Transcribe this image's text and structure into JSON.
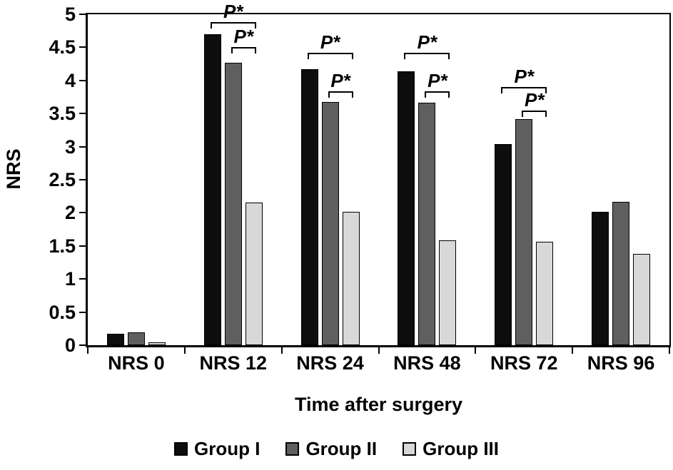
{
  "chart_data": {
    "type": "bar",
    "title": "",
    "xlabel": "Time after surgery",
    "ylabel": "NRS",
    "ylim": [
      0,
      5
    ],
    "ytick_step": 0.5,
    "ytick_labels": [
      "5",
      "4.5",
      "4",
      "3.5",
      "3",
      "2.5",
      "2",
      "1.5",
      "1",
      "0.5",
      "0"
    ],
    "grid": false,
    "legend_position": "bottom",
    "categories": [
      "NRS 0",
      "NRS 12",
      "NRS 24",
      "NRS 48",
      "NRS 72",
      "NRS 96"
    ],
    "series": [
      {
        "name": "Group I",
        "color": "#0d0d0d",
        "values": [
          0.17,
          4.7,
          4.17,
          4.14,
          3.04,
          2.01
        ]
      },
      {
        "name": "Group II",
        "color": "#5f5f5f",
        "values": [
          0.19,
          4.27,
          3.68,
          3.66,
          3.42,
          2.17
        ]
      },
      {
        "name": "Group III",
        "color": "#d8d8d8",
        "values": [
          0.04,
          2.16,
          2.02,
          1.58,
          1.56,
          1.38
        ]
      }
    ],
    "annotations": [
      {
        "label": "P*",
        "category": 1,
        "from_series": 0,
        "to_series": 2,
        "y": 4.88
      },
      {
        "label": "P*",
        "category": 1,
        "from_series": 1,
        "to_series": 2,
        "y": 4.5
      },
      {
        "label": "P*",
        "category": 2,
        "from_series": 0,
        "to_series": 2,
        "y": 4.42
      },
      {
        "label": "P*",
        "category": 2,
        "from_series": 1,
        "to_series": 2,
        "y": 3.84
      },
      {
        "label": "P*",
        "category": 3,
        "from_series": 0,
        "to_series": 2,
        "y": 4.42
      },
      {
        "label": "P*",
        "category": 3,
        "from_series": 1,
        "to_series": 2,
        "y": 3.84
      },
      {
        "label": "P*",
        "category": 4,
        "from_series": 0,
        "to_series": 2,
        "y": 3.9
      },
      {
        "label": "P*",
        "category": 4,
        "from_series": 1,
        "to_series": 2,
        "y": 3.54
      }
    ]
  }
}
